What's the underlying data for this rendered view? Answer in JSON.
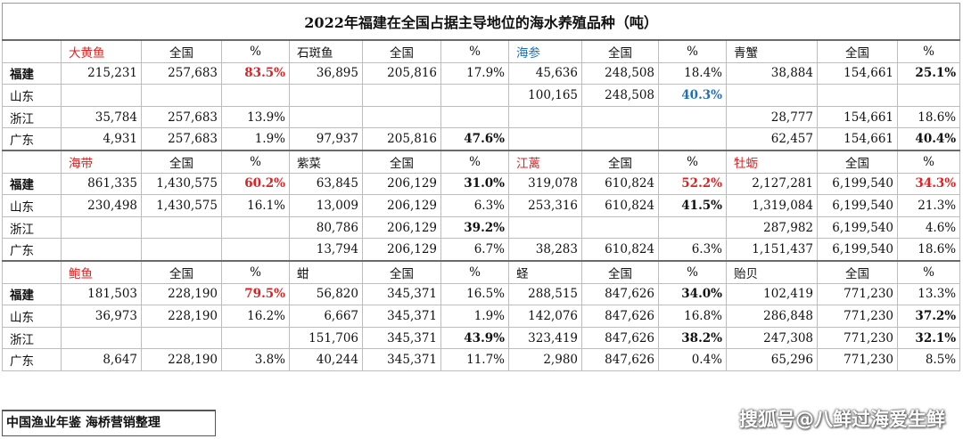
{
  "title": "2022年福建在全国占据主导地位的海水养殖品种（吨）",
  "labels": {
    "national": "全国",
    "pct": "%"
  },
  "provinces": [
    "福建",
    "山东",
    "浙江",
    "广东"
  ],
  "colors": {
    "red": "#e02020",
    "blue": "#1f6fb5"
  },
  "bands": [
    {
      "species": [
        {
          "name": "大黄鱼",
          "name_color": "red"
        },
        {
          "name": "石斑鱼",
          "name_color": "default"
        },
        {
          "name": "海参",
          "name_color": "blue"
        },
        {
          "name": "青蟹",
          "name_color": "default"
        }
      ],
      "rows": [
        [
          [
            "215,231",
            "257,683",
            "83.5%",
            "red-bold"
          ],
          [
            "36,895",
            "205,816",
            "17.9%",
            ""
          ],
          [
            "45,636",
            "248,508",
            "18.4%",
            ""
          ],
          [
            "38,884",
            "154,661",
            "25.1%",
            "bold"
          ]
        ],
        [
          [
            "",
            "",
            "",
            ""
          ],
          [
            "",
            "",
            "",
            ""
          ],
          [
            "100,165",
            "248,508",
            "40.3%",
            "blue-bold"
          ],
          [
            "",
            "",
            "",
            ""
          ]
        ],
        [
          [
            "35,784",
            "257,683",
            "13.9%",
            ""
          ],
          [
            "",
            "",
            "",
            ""
          ],
          [
            "",
            "",
            "",
            ""
          ],
          [
            "28,777",
            "154,661",
            "18.6%",
            ""
          ]
        ],
        [
          [
            "4,931",
            "257,683",
            "1.9%",
            ""
          ],
          [
            "97,937",
            "205,816",
            "47.6%",
            "bold"
          ],
          [
            "",
            "",
            "",
            ""
          ],
          [
            "62,457",
            "154,661",
            "40.4%",
            "bold"
          ]
        ]
      ]
    },
    {
      "species": [
        {
          "name": "海带",
          "name_color": "red"
        },
        {
          "name": "紫菜",
          "name_color": "default"
        },
        {
          "name": "江蓠",
          "name_color": "red"
        },
        {
          "name": "牡蛎",
          "name_color": "red"
        }
      ],
      "rows": [
        [
          [
            "861,335",
            "1,430,575",
            "60.2%",
            "red-bold"
          ],
          [
            "63,845",
            "206,129",
            "31.0%",
            "bold"
          ],
          [
            "319,078",
            "610,824",
            "52.2%",
            "red-bold"
          ],
          [
            "2,127,281",
            "6,199,540",
            "34.3%",
            "red-bold"
          ]
        ],
        [
          [
            "230,498",
            "1,430,575",
            "16.1%",
            ""
          ],
          [
            "13,009",
            "206,129",
            "6.3%",
            ""
          ],
          [
            "253,316",
            "610,824",
            "41.5%",
            "bold"
          ],
          [
            "1,319,084",
            "6,199,540",
            "21.3%",
            ""
          ]
        ],
        [
          [
            "",
            "",
            "",
            ""
          ],
          [
            "80,786",
            "206,129",
            "39.2%",
            "bold"
          ],
          [
            "",
            "",
            "",
            ""
          ],
          [
            "287,982",
            "6,199,540",
            "4.6%",
            ""
          ]
        ],
        [
          [
            "",
            "",
            "",
            ""
          ],
          [
            "13,794",
            "206,129",
            "6.7%",
            ""
          ],
          [
            "38,283",
            "610,824",
            "6.3%",
            ""
          ],
          [
            "1,151,437",
            "6,199,540",
            "18.6%",
            ""
          ]
        ]
      ]
    },
    {
      "species": [
        {
          "name": "鲍鱼",
          "name_color": "red"
        },
        {
          "name": "蚶",
          "name_color": "default"
        },
        {
          "name": "蛏",
          "name_color": "default"
        },
        {
          "name": "贻贝",
          "name_color": "default"
        }
      ],
      "rows": [
        [
          [
            "181,503",
            "228,190",
            "79.5%",
            "red-bold"
          ],
          [
            "56,820",
            "345,371",
            "16.5%",
            ""
          ],
          [
            "288,515",
            "847,626",
            "34.0%",
            "bold"
          ],
          [
            "102,419",
            "771,230",
            "13.3%",
            ""
          ]
        ],
        [
          [
            "36,973",
            "228,190",
            "16.2%",
            ""
          ],
          [
            "6,667",
            "345,371",
            "1.9%",
            ""
          ],
          [
            "142,076",
            "847,626",
            "16.8%",
            ""
          ],
          [
            "286,848",
            "771,230",
            "37.2%",
            "bold"
          ]
        ],
        [
          [
            "",
            "",
            "",
            ""
          ],
          [
            "151,706",
            "345,371",
            "43.9%",
            "bold"
          ],
          [
            "323,419",
            "847,626",
            "38.2%",
            "bold"
          ],
          [
            "247,308",
            "771,230",
            "32.1%",
            "bold"
          ]
        ],
        [
          [
            "8,647",
            "228,190",
            "3.8%",
            ""
          ],
          [
            "40,244",
            "345,371",
            "11.7%",
            ""
          ],
          [
            "2,980",
            "847,626",
            "0.4%",
            ""
          ],
          [
            "65,296",
            "771,230",
            "8.5%",
            ""
          ]
        ]
      ]
    }
  ],
  "footer": "中国渔业年鉴 海桥营销整理",
  "watermark": "搜狐号@八鲜过海爱生鲜"
}
